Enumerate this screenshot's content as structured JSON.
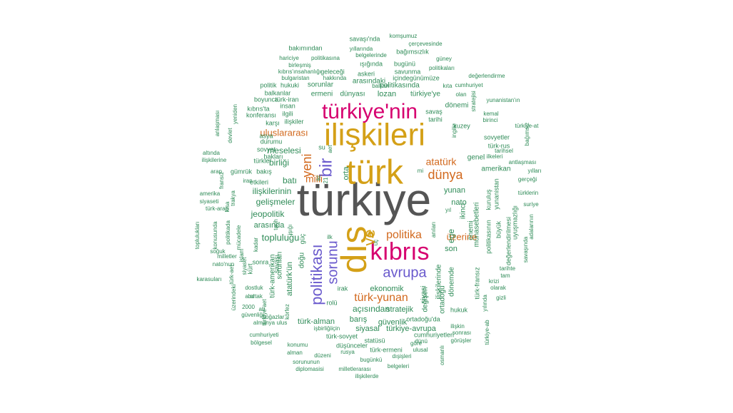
{
  "colors": {
    "gray": "#555555",
    "gold": "#D4A017",
    "magenta": "#D6006F",
    "purple": "#6A5ACD",
    "orange": "#D2691E",
    "green": "#2E8B57"
  },
  "words": [
    {
      "text": "türkiye",
      "color": "gray"
    },
    {
      "text": "ilişkileri",
      "color": "gold"
    },
    {
      "text": "türk",
      "color": "gold"
    },
    {
      "text": "türkiye'nin",
      "color": "magenta"
    },
    {
      "text": "dış",
      "color": "gold"
    },
    {
      "text": "kıbrıs",
      "color": "magenta"
    },
    {
      "text": "politikası",
      "color": "purple"
    },
    {
      "text": "avrupa",
      "color": "purple"
    },
    {
      "text": "sorunu",
      "color": "purple"
    },
    {
      "text": "bir",
      "color": "purple"
    },
    {
      "text": "yeni",
      "color": "orange"
    },
    {
      "text": "dünya",
      "color": "orange"
    },
    {
      "text": "politika",
      "color": "orange"
    },
    {
      "text": "türk-yunan",
      "color": "orange"
    },
    {
      "text": "atatürk",
      "color": "orange"
    },
    {
      "text": "uluslararası",
      "color": "orange"
    },
    {
      "text": "milli",
      "color": "orange"
    },
    {
      "text": "üzerine",
      "color": "orange"
    },
    {
      "text": "ve",
      "color": "gold"
    },
    {
      "text": "ilişkilerinin",
      "color": "green"
    },
    {
      "text": "gelişmeler",
      "color": "green"
    },
    {
      "text": "topluluğu",
      "color": "green"
    },
    {
      "text": "meselesi",
      "color": "green"
    },
    {
      "text": "birliği",
      "color": "green"
    },
    {
      "text": "batı",
      "color": "green"
    },
    {
      "text": "jeopolitik",
      "color": "green"
    },
    {
      "text": "arasında",
      "color": "green"
    },
    {
      "text": "ekonomik",
      "color": "green"
    },
    {
      "text": "açısından",
      "color": "green"
    },
    {
      "text": "stratejik",
      "color": "green"
    },
    {
      "text": "güvenlik",
      "color": "green"
    },
    {
      "text": "siyasal",
      "color": "green"
    },
    {
      "text": "barış",
      "color": "green"
    },
    {
      "text": "türk-alman",
      "color": "green"
    },
    {
      "text": "türkiye-avrupa",
      "color": "green"
    },
    {
      "text": "nato",
      "color": "green"
    },
    {
      "text": "yunan",
      "color": "green"
    },
    {
      "text": "genel",
      "color": "green"
    },
    {
      "text": "amerikan",
      "color": "green"
    },
    {
      "text": "ege",
      "color": "green"
    },
    {
      "text": "son",
      "color": "green"
    },
    {
      "text": "dönemi",
      "color": "green"
    },
    {
      "text": "lozan",
      "color": "green"
    },
    {
      "text": "dünyası",
      "color": "green"
    },
    {
      "text": "ermeni",
      "color": "green"
    },
    {
      "text": "türkiye'ye",
      "color": "green"
    },
    {
      "text": "politikasında",
      "color": "green"
    },
    {
      "text": "arasındaki",
      "color": "green"
    },
    {
      "text": "sorunlar",
      "color": "green"
    },
    {
      "text": "hukuki",
      "color": "green"
    },
    {
      "text": "politik",
      "color": "green"
    },
    {
      "text": "balkanlar",
      "color": "green"
    },
    {
      "text": "boyunca",
      "color": "green"
    },
    {
      "text": "türk-iran",
      "color": "green"
    },
    {
      "text": "insan",
      "color": "green"
    },
    {
      "text": "ilgili",
      "color": "green"
    },
    {
      "text": "ilişkiler",
      "color": "green"
    },
    {
      "text": "karşı",
      "color": "green"
    },
    {
      "text": "konferansı",
      "color": "green"
    },
    {
      "text": "kıbrıs'ta",
      "color": "green"
    },
    {
      "text": "asya",
      "color": "green"
    },
    {
      "text": "durumu",
      "color": "green"
    },
    {
      "text": "sovyet",
      "color": "green"
    },
    {
      "text": "hakları",
      "color": "green"
    },
    {
      "text": "türkler",
      "color": "green"
    },
    {
      "text": "bakış",
      "color": "green"
    },
    {
      "text": "etkileri",
      "color": "green"
    },
    {
      "text": "gümrük",
      "color": "green"
    },
    {
      "text": "arap",
      "color": "green"
    },
    {
      "text": "iran",
      "color": "green"
    },
    {
      "text": "savaşı'nda",
      "color": "green"
    },
    {
      "text": "komşumuz",
      "color": "green"
    },
    {
      "text": "çerçevesinde",
      "color": "green"
    },
    {
      "text": "bakımından",
      "color": "green"
    },
    {
      "text": "yıllarında",
      "color": "green"
    },
    {
      "text": "bağımsızlık",
      "color": "green"
    },
    {
      "text": "hariciye",
      "color": "green"
    },
    {
      "text": "politikasına",
      "color": "green"
    },
    {
      "text": "belgelerinde",
      "color": "green"
    },
    {
      "text": "güney",
      "color": "green"
    },
    {
      "text": "birleşmiş",
      "color": "green"
    },
    {
      "text": "ışığında",
      "color": "green"
    },
    {
      "text": "bugünü",
      "color": "green"
    },
    {
      "text": "politikaları",
      "color": "green"
    },
    {
      "text": "kıbrıs'ınsahanlığı",
      "color": "green"
    },
    {
      "text": "geleceği",
      "color": "green"
    },
    {
      "text": "savunma",
      "color": "green"
    },
    {
      "text": "değerlendirme",
      "color": "green"
    },
    {
      "text": "bulgaristan",
      "color": "green"
    },
    {
      "text": "hakkında",
      "color": "green"
    },
    {
      "text": "askeri",
      "color": "green"
    },
    {
      "text": "içindegünümüze",
      "color": "green"
    },
    {
      "text": "balkan",
      "color": "green"
    },
    {
      "text": "kıta",
      "color": "green"
    },
    {
      "text": "cumhuriyet",
      "color": "green"
    },
    {
      "text": "olan",
      "color": "green"
    },
    {
      "text": "yunanistan'ın",
      "color": "green"
    },
    {
      "text": "savaş",
      "color": "green"
    },
    {
      "text": "tarihi",
      "color": "green"
    },
    {
      "text": "kemal",
      "color": "green"
    },
    {
      "text": "birinci",
      "color": "green"
    },
    {
      "text": "türkiye-at",
      "color": "green"
    },
    {
      "text": "kuzey",
      "color": "green"
    },
    {
      "text": "sovyetler",
      "color": "green"
    },
    {
      "text": "türk-rus",
      "color": "green"
    },
    {
      "text": "tarihsel",
      "color": "green"
    },
    {
      "text": "ilkeleri",
      "color": "green"
    },
    {
      "text": "antlaşması",
      "color": "green"
    },
    {
      "text": "yılları",
      "color": "green"
    },
    {
      "text": "gerçeği",
      "color": "green"
    },
    {
      "text": "türklerin",
      "color": "green"
    },
    {
      "text": "suriye",
      "color": "green"
    },
    {
      "text": "anlaşması",
      "color": "green"
    },
    {
      "text": "yeniden",
      "color": "green"
    },
    {
      "text": "devlet",
      "color": "green"
    },
    {
      "text": "altında",
      "color": "green"
    },
    {
      "text": "ilişkilerine",
      "color": "green"
    },
    {
      "text": "fransız",
      "color": "green"
    },
    {
      "text": "trakya",
      "color": "green"
    },
    {
      "text": "amerika",
      "color": "green"
    },
    {
      "text": "siyaseti",
      "color": "green"
    },
    {
      "text": "türk-arap",
      "color": "green"
    },
    {
      "text": "toplulukları",
      "color": "green"
    },
    {
      "text": "konusunda",
      "color": "green"
    },
    {
      "text": "politikada",
      "color": "green"
    },
    {
      "text": "soğuk",
      "color": "green"
    },
    {
      "text": "mücadele",
      "color": "green"
    },
    {
      "text": "kadar",
      "color": "green"
    },
    {
      "text": "milletler",
      "color": "green"
    },
    {
      "text": "nato'nun",
      "color": "green"
    },
    {
      "text": "siyaset",
      "color": "green"
    },
    {
      "text": "karasuları",
      "color": "green"
    },
    {
      "text": "türk-aet",
      "color": "green"
    },
    {
      "text": "dostluk",
      "color": "green"
    },
    {
      "text": "abd",
      "color": "green"
    },
    {
      "text": "üzerindeki",
      "color": "green"
    },
    {
      "text": "türkiye-aet",
      "color": "green"
    },
    {
      "text": "2000",
      "color": "green"
    },
    {
      "text": "güvenliği",
      "color": "green"
    },
    {
      "text": "boğazlar",
      "color": "green"
    },
    {
      "text": "almanya",
      "color": "green"
    },
    {
      "text": "körfez",
      "color": "green"
    },
    {
      "text": "cumhuriyeti",
      "color": "green"
    },
    {
      "text": "bölgesel",
      "color": "green"
    },
    {
      "text": "işbirliğiiçin",
      "color": "green"
    },
    {
      "text": "türk-sovyet",
      "color": "green"
    },
    {
      "text": "konumu",
      "color": "green"
    },
    {
      "text": "düşünceler",
      "color": "green"
    },
    {
      "text": "alman",
      "color": "green"
    },
    {
      "text": "düzeni",
      "color": "green"
    },
    {
      "text": "rusya",
      "color": "green"
    },
    {
      "text": "sorununun",
      "color": "green"
    },
    {
      "text": "diplomasisi",
      "color": "green"
    },
    {
      "text": "milletlerarası",
      "color": "green"
    },
    {
      "text": "bugünkü",
      "color": "green"
    },
    {
      "text": "belgeleri",
      "color": "green"
    },
    {
      "text": "ilişkilerde",
      "color": "green"
    },
    {
      "text": "statüsü",
      "color": "green"
    },
    {
      "text": "türk-ermeni",
      "color": "green"
    },
    {
      "text": "ulusal",
      "color": "green"
    },
    {
      "text": "dışişleri",
      "color": "green"
    },
    {
      "text": "göre",
      "color": "green"
    },
    {
      "text": "osmanlı",
      "color": "green"
    },
    {
      "text": "cumhuriyetleri",
      "color": "green"
    },
    {
      "text": "sonrası",
      "color": "green"
    },
    {
      "text": "görüşler",
      "color": "green"
    },
    {
      "text": "ortadoğu'da",
      "color": "green"
    },
    {
      "text": "ilişkin",
      "color": "green"
    },
    {
      "text": "türkiye-ab",
      "color": "green"
    },
    {
      "text": "hukuk",
      "color": "green"
    },
    {
      "text": "yılında",
      "color": "green"
    },
    {
      "text": "gizli",
      "color": "green"
    },
    {
      "text": "krizi",
      "color": "green"
    },
    {
      "text": "olarak",
      "color": "green"
    },
    {
      "text": "tam",
      "color": "green"
    },
    {
      "text": "tarihte",
      "color": "green"
    },
    {
      "text": "ilişkilerinde",
      "color": "green"
    },
    {
      "text": "dönemde",
      "color": "green"
    },
    {
      "text": "değişen",
      "color": "green"
    },
    {
      "text": "ortadoğu",
      "color": "green"
    },
    {
      "text": "türk-fransız",
      "color": "green"
    },
    {
      "text": "siyasi",
      "color": "green"
    },
    {
      "text": "ikinci",
      "color": "green"
    },
    {
      "text": "önemi",
      "color": "green"
    },
    {
      "text": "politikasının",
      "color": "green"
    },
    {
      "text": "münasebetleri",
      "color": "green"
    },
    {
      "text": "kuruluş",
      "color": "green"
    },
    {
      "text": "yunanistan",
      "color": "green"
    },
    {
      "text": "büyük",
      "color": "green"
    },
    {
      "text": "değerlendirilmesi",
      "color": "green"
    },
    {
      "text": "uyuşmazlığı",
      "color": "green"
    },
    {
      "text": "adalarının",
      "color": "green"
    },
    {
      "text": "savaşında",
      "color": "green"
    },
    {
      "text": "doğu",
      "color": "green"
    },
    {
      "text": "bağımsız",
      "color": "green"
    },
    {
      "text": "ingiliz",
      "color": "green"
    },
    {
      "text": "stratejisi",
      "color": "green"
    },
    {
      "text": "anıları",
      "color": "green"
    },
    {
      "text": "yıl",
      "color": "green"
    },
    {
      "text": "atatürk'ün",
      "color": "green"
    },
    {
      "text": "sorunları",
      "color": "green"
    },
    {
      "text": "sonra",
      "color": "green"
    },
    {
      "text": "türk-amerikan",
      "color": "green"
    },
    {
      "text": "kürt",
      "color": "green"
    },
    {
      "text": "islam",
      "color": "green"
    },
    {
      "text": "işığı",
      "color": "green"
    },
    {
      "text": "güç",
      "color": "green"
    },
    {
      "text": "savaşı",
      "color": "green"
    },
    {
      "text": "irak",
      "color": "green"
    },
    {
      "text": "rolü",
      "color": "green"
    },
    {
      "text": "dünü",
      "color": "green"
    },
    {
      "text": "su",
      "color": "green"
    },
    {
      "text": "aet",
      "color": "green"
    },
    {
      "text": "iki",
      "color": "green"
    },
    {
      "text": "21",
      "color": "green"
    },
    {
      "text": "orta",
      "color": "green"
    },
    {
      "text": "mi",
      "color": "green"
    },
    {
      "text": "ilk",
      "color": "green"
    },
    {
      "text": "üç",
      "color": "green"
    },
    {
      "text": "ortak",
      "color": "green"
    },
    {
      "text": "ab",
      "color": "green"
    },
    {
      "text": "ulus",
      "color": "green"
    },
    {
      "text": "tarih",
      "color": "green"
    },
    {
      "text": "kısa",
      "color": "green"
    }
  ]
}
